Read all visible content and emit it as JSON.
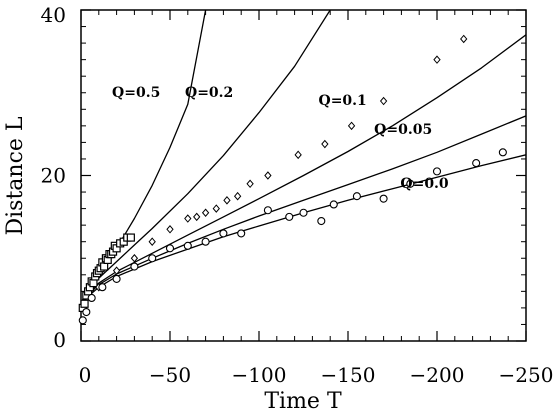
{
  "chart_data": {
    "type": "line",
    "title": "",
    "xlabel": "Time T",
    "ylabel": "Distance L",
    "xlim": [
      0,
      -250
    ],
    "ylim": [
      0,
      40
    ],
    "x_ticks": [
      0,
      -50,
      -100,
      -150,
      -200,
      -250
    ],
    "x_tick_labels": [
      "0",
      "−50",
      "−100",
      "−150",
      "−200",
      "−250"
    ],
    "y_ticks": [
      0,
      20,
      40
    ],
    "y_tick_labels": [
      "0",
      "20",
      "40"
    ],
    "grid": false,
    "legend": "none",
    "series": [
      {
        "name": "Q=0.5",
        "x": [
          0,
          -1,
          -3,
          -6,
          -10,
          -15,
          -20,
          -30,
          -40,
          -50,
          -60,
          -70
        ],
        "y": [
          4.0,
          5.0,
          5.8,
          6.8,
          8.0,
          9.6,
          11.2,
          14.8,
          18.8,
          23.4,
          28.6,
          40.0
        ]
      },
      {
        "name": "Q=0.2",
        "x": [
          0,
          -1,
          -5,
          -10,
          -20,
          -30,
          -40,
          -60,
          -80,
          -100,
          -120,
          -140
        ],
        "y": [
          4.0,
          5.0,
          6.3,
          7.6,
          9.6,
          11.6,
          13.6,
          17.8,
          22.4,
          27.6,
          33.2,
          40.0
        ]
      },
      {
        "name": "Q=0.1",
        "x": [
          0,
          -1,
          -5,
          -10,
          -20,
          -40,
          -60,
          -80,
          -100,
          -125,
          -150,
          -175,
          -200,
          -225,
          -250
        ],
        "y": [
          3.9,
          4.8,
          6.0,
          7.0,
          8.4,
          10.6,
          12.8,
          15.0,
          17.2,
          20.0,
          22.9,
          26.0,
          29.4,
          33.0,
          37.0
        ]
      },
      {
        "name": "Q=0.05",
        "x": [
          0,
          -1,
          -5,
          -10,
          -20,
          -40,
          -60,
          -80,
          -100,
          -125,
          -150,
          -175,
          -200,
          -225,
          -250
        ],
        "y": [
          3.9,
          4.7,
          5.8,
          6.8,
          8.1,
          10.0,
          11.8,
          13.5,
          15.1,
          17.0,
          18.9,
          20.8,
          22.8,
          25.0,
          27.2
        ]
      },
      {
        "name": "Q=0.0",
        "x": [
          0,
          -1,
          -5,
          -10,
          -20,
          -40,
          -60,
          -80,
          -100,
          -125,
          -150,
          -175,
          -200,
          -225,
          -250
        ],
        "y": [
          3.8,
          4.6,
          5.6,
          6.5,
          7.8,
          9.6,
          11.1,
          12.6,
          13.9,
          15.5,
          17.0,
          18.4,
          19.8,
          21.2,
          22.5
        ]
      }
    ],
    "scatter_series": [
      {
        "marker": "square",
        "x": [
          -1,
          -2,
          -3,
          -4,
          -5,
          -6,
          -7,
          -8,
          -9,
          -10,
          -11,
          -12,
          -13,
          -14,
          -15,
          -16,
          -17,
          -18,
          -19,
          -20,
          -22,
          -24,
          -26,
          -28
        ],
        "y": [
          4,
          4.5,
          5.5,
          6,
          6.5,
          7.2,
          7,
          7.8,
          8.2,
          8.5,
          8.8,
          9.5,
          9,
          10,
          9.8,
          10.5,
          10.5,
          10.8,
          11.5,
          11.2,
          11.8,
          12,
          12.5,
          12.5
        ]
      },
      {
        "marker": "diamond",
        "x": [
          -10,
          -20,
          -30,
          -40,
          -50,
          -60,
          -65,
          -70,
          -76,
          -82,
          -88,
          -95,
          -105,
          -122,
          -137,
          -152,
          -170,
          -200,
          -215
        ],
        "y": [
          6.5,
          8.5,
          10,
          12,
          13.5,
          14.8,
          15,
          15.5,
          16,
          17,
          17.5,
          19,
          20,
          22.5,
          23.8,
          26,
          29,
          34,
          36.5
        ]
      },
      {
        "marker": "circle",
        "x": [
          -1,
          -3,
          -6,
          -12,
          -20,
          -30,
          -40,
          -50,
          -60,
          -70,
          -80,
          -90,
          -105,
          -117,
          -125,
          -135,
          -142,
          -155,
          -170,
          -185,
          -200,
          -222,
          -237
        ],
        "y": [
          2.5,
          3.5,
          5.2,
          6.5,
          7.5,
          9,
          10,
          11.2,
          11.5,
          12,
          13,
          13,
          15.8,
          15,
          15.5,
          14.5,
          16.5,
          17.5,
          17.2,
          19,
          20.5,
          21.5,
          22.8
        ]
      }
    ],
    "curve_labels": [
      {
        "text": "Q=0.5",
        "x": -31,
        "y": 29.5
      },
      {
        "text": "Q=0.2",
        "x": -72,
        "y": 29.5
      },
      {
        "text": "Q=0.1",
        "x": -147,
        "y": 28.5
      },
      {
        "text": "Q=0.05",
        "x": -181,
        "y": 25.0
      },
      {
        "text": "Q=0.0",
        "x": -193,
        "y": 18.5
      }
    ]
  }
}
